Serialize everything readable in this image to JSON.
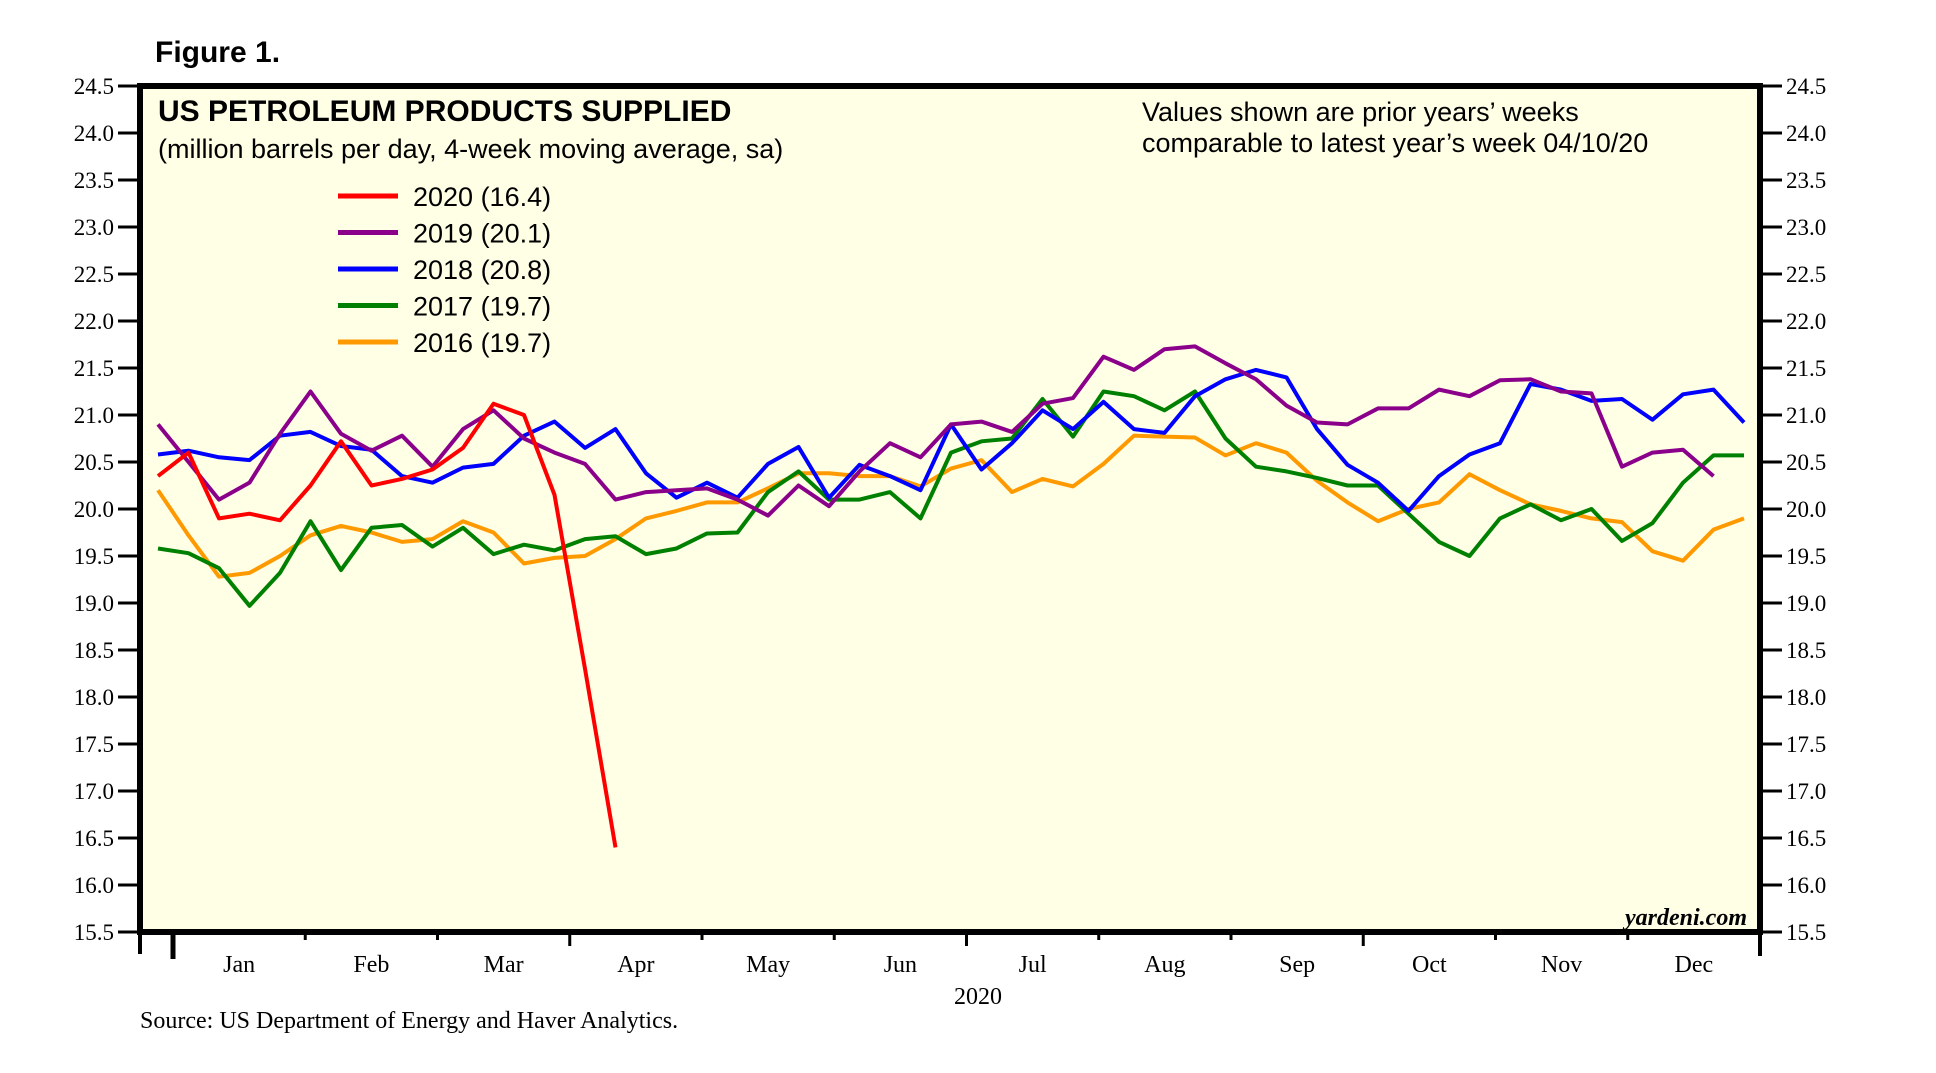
{
  "figure_label": "Figure 1.",
  "source": "Source: US Department of Energy and Haver Analytics.",
  "watermark": "yardeni.com",
  "colors": {
    "plot_background": "#ffffe6",
    "2020": "#ff0000",
    "2019": "#8b008b",
    "2018": "#0000ff",
    "2017": "#008000",
    "2016": "#ff9900"
  },
  "chart_data": {
    "type": "line",
    "title": "US PETROLEUM PRODUCTS SUPPLIED",
    "subtitle": "(million barrels per day, 4-week moving average, sa)",
    "annotation": [
      "Values shown are prior years’ weeks",
      "comparable to latest year’s week 04/10/20"
    ],
    "xlabel": "2020",
    "ylabel": "",
    "ylim": [
      15.5,
      24.5
    ],
    "yticks": [
      "24.5",
      "24.0",
      "23.5",
      "23.0",
      "22.5",
      "22.0",
      "21.5",
      "21.0",
      "20.5",
      "20.0",
      "19.5",
      "19.0",
      "18.5",
      "18.0",
      "17.5",
      "17.0",
      "16.5",
      "16.0",
      "15.5"
    ],
    "x_tick_labels": [
      "Jan",
      "Feb",
      "Mar",
      "Apr",
      "May",
      "Jun",
      "Jul",
      "Aug",
      "Sep",
      "Oct",
      "Nov",
      "Dec"
    ],
    "x_unit": "week of year (1-52)",
    "grid": false,
    "legend_position": "top-left",
    "legend": [
      "2020 (16.4)",
      "2019 (20.1)",
      "2018 (20.8)",
      "2017 (19.7)",
      "2016 (19.7)"
    ],
    "series": [
      {
        "name": "2020",
        "legend": "2020 (16.4)",
        "values": [
          20.35,
          20.6,
          19.9,
          19.95,
          19.88,
          20.25,
          20.72,
          20.25,
          20.32,
          20.42,
          20.65,
          21.12,
          21.0,
          20.15,
          18.3,
          16.4
        ]
      },
      {
        "name": "2019",
        "legend": "2019 (20.1)",
        "values": [
          20.9,
          20.5,
          20.1,
          20.28,
          20.8,
          21.25,
          20.8,
          20.62,
          20.78,
          20.45,
          20.85,
          21.05,
          20.75,
          20.6,
          20.48,
          20.1,
          20.18,
          20.2,
          20.22,
          20.1,
          19.93,
          20.25,
          20.03,
          20.4,
          20.7,
          20.55,
          20.9,
          20.93,
          20.82,
          21.12,
          21.18,
          21.62,
          21.48,
          21.7,
          21.73,
          21.55,
          21.38,
          21.1,
          20.92,
          20.9,
          21.07,
          21.07,
          21.27,
          21.2,
          21.37,
          21.38,
          21.25,
          21.23,
          20.45,
          20.6,
          20.63,
          20.35
        ]
      },
      {
        "name": "2018",
        "legend": "2018 (20.8)",
        "values": [
          20.58,
          20.62,
          20.55,
          20.52,
          20.78,
          20.82,
          20.67,
          20.63,
          20.35,
          20.28,
          20.44,
          20.48,
          20.78,
          20.93,
          20.65,
          20.85,
          20.38,
          20.12,
          20.28,
          20.12,
          20.48,
          20.66,
          20.12,
          20.47,
          20.35,
          20.2,
          20.9,
          20.42,
          20.7,
          21.05,
          20.85,
          21.14,
          20.85,
          20.81,
          21.2,
          21.38,
          21.48,
          21.4,
          20.85,
          20.47,
          20.28,
          19.98,
          20.35,
          20.58,
          20.7,
          21.33,
          21.27,
          21.15,
          21.17,
          20.95,
          21.22,
          21.27,
          20.92
        ]
      },
      {
        "name": "2017",
        "legend": "2017 (19.7)",
        "values": [
          19.58,
          19.53,
          19.37,
          18.97,
          19.32,
          19.87,
          19.35,
          19.8,
          19.83,
          19.6,
          19.8,
          19.52,
          19.62,
          19.56,
          19.68,
          19.71,
          19.52,
          19.58,
          19.74,
          19.75,
          20.18,
          20.4,
          20.1,
          20.1,
          20.18,
          19.9,
          20.6,
          20.72,
          20.75,
          21.17,
          20.77,
          21.25,
          21.2,
          21.05,
          21.25,
          20.75,
          20.45,
          20.4,
          20.33,
          20.25,
          20.25,
          19.95,
          19.65,
          19.5,
          19.9,
          20.05,
          19.88,
          20.0,
          19.66,
          19.85,
          20.28,
          20.57,
          20.57
        ]
      },
      {
        "name": "2016",
        "legend": "2016 (19.7)",
        "values": [
          20.2,
          19.72,
          19.28,
          19.32,
          19.5,
          19.72,
          19.82,
          19.75,
          19.65,
          19.68,
          19.87,
          19.75,
          19.42,
          19.48,
          19.5,
          19.68,
          19.9,
          19.98,
          20.07,
          20.07,
          20.22,
          20.38,
          20.38,
          20.35,
          20.35,
          20.24,
          20.43,
          20.52,
          20.18,
          20.32,
          20.24,
          20.48,
          20.78,
          20.77,
          20.76,
          20.57,
          20.7,
          20.6,
          20.3,
          20.07,
          19.87,
          20.0,
          20.07,
          20.37,
          20.2,
          20.05,
          19.98,
          19.9,
          19.86,
          19.55,
          19.45,
          19.78,
          19.9
        ]
      }
    ]
  }
}
